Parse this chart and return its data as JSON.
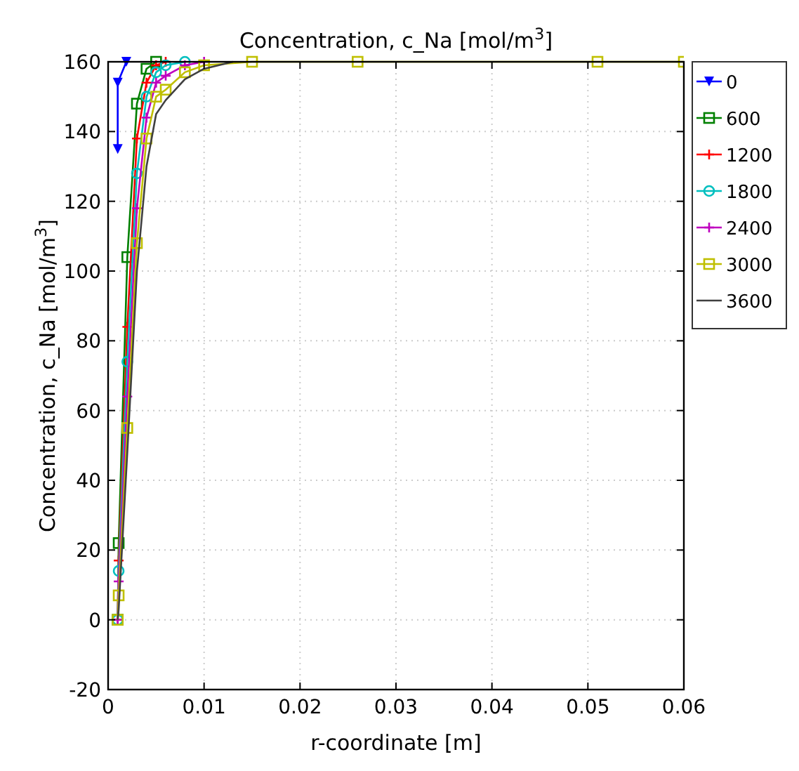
{
  "chart_data": {
    "type": "line",
    "title": "Concentration, c_Na [mol/m$^{3}$]",
    "xlabel": "r-coordinate [m]",
    "ylabel": "Concentration, c_Na [mol/m$^{3}$]",
    "xlim": [
      0,
      0.06
    ],
    "xticks": [
      0,
      0.01,
      0.02,
      0.03,
      0.04,
      0.05,
      0.06
    ],
    "ylim": [
      -20,
      160
    ],
    "yticks": [
      -20,
      0,
      20,
      40,
      60,
      80,
      100,
      120,
      140,
      160
    ],
    "grid": true,
    "legend": "top right",
    "line_style": "solid",
    "series": [
      {
        "name": "0",
        "color": "#0000ff",
        "marker": "triangle",
        "x": [
          0.001,
          0.001,
          0.0019
        ],
        "values": [
          135,
          154,
          160
        ]
      },
      {
        "name": "600",
        "color": "#008000",
        "marker": "square",
        "x": [
          0.001,
          0.0011,
          0.002,
          0.003,
          0.004,
          0.005
        ],
        "values": [
          0,
          22,
          104,
          148,
          158,
          160
        ]
      },
      {
        "name": "1200",
        "color": "#ff0000",
        "marker": "cross",
        "x": [
          0.001,
          0.0011,
          0.002,
          0.003,
          0.004,
          0.005,
          0.006
        ],
        "values": [
          0,
          17,
          84,
          138,
          154,
          159,
          160
        ]
      },
      {
        "name": "1800",
        "color": "#00bfbf",
        "marker": "circle",
        "x": [
          0.001,
          0.0011,
          0.002,
          0.003,
          0.004,
          0.005,
          0.006,
          0.008
        ],
        "values": [
          0,
          14,
          74,
          128,
          150,
          157,
          159,
          160
        ]
      },
      {
        "name": "2400",
        "color": "#bf00bf",
        "marker": "cross",
        "x": [
          0.001,
          0.0011,
          0.002,
          0.003,
          0.004,
          0.005,
          0.006,
          0.008,
          0.01
        ],
        "values": [
          0,
          11,
          64,
          118,
          144,
          154,
          156,
          159,
          160
        ]
      },
      {
        "name": "3000",
        "color": "#bfbf00",
        "marker": "square",
        "x": [
          0.001,
          0.0011,
          0.002,
          0.003,
          0.004,
          0.005,
          0.006,
          0.008,
          0.01,
          0.015,
          0.026,
          0.051,
          0.06
        ],
        "values": [
          0,
          7,
          55,
          108,
          138,
          150,
          152,
          157,
          159,
          160,
          160,
          160,
          160
        ]
      },
      {
        "name": "3600",
        "color": "#404040",
        "marker": "none",
        "x": [
          0.001,
          0.0011,
          0.002,
          0.003,
          0.004,
          0.005,
          0.006,
          0.008,
          0.01,
          0.013
        ],
        "values": [
          0,
          3,
          48,
          100,
          130,
          145,
          149,
          155,
          158,
          160
        ]
      }
    ]
  }
}
